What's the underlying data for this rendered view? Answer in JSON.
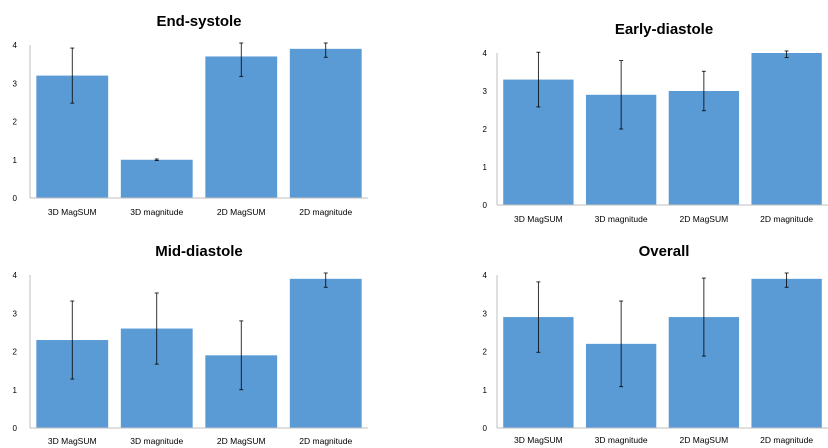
{
  "colors": {
    "bar": "#5B9BD5",
    "axis": "#bfbfbf",
    "error": "#000000"
  },
  "chart_data": [
    {
      "type": "bar",
      "title": "End-systole",
      "categories": [
        "3D MagSUM",
        "3D magnitude",
        "2D MagSUM",
        "2D magnitude"
      ],
      "values": [
        3.2,
        1.0,
        3.7,
        3.9
      ],
      "error": [
        0.72,
        0.02,
        0.52,
        0.22
      ],
      "ylim": [
        0,
        4
      ],
      "yticks": [
        "0",
        "1",
        "2",
        "3",
        "4"
      ],
      "grid": false
    },
    {
      "type": "bar",
      "title": "Early-diastole",
      "categories": [
        "3D MagSUM",
        "3D magnitude",
        "2D MagSUM",
        "2D magnitude"
      ],
      "values": [
        3.3,
        2.9,
        3.0,
        4.0
      ],
      "error": [
        0.72,
        0.9,
        0.52,
        0.12
      ],
      "ylim": [
        0,
        4
      ],
      "yticks": [
        "0",
        "1",
        "2",
        "3",
        "4"
      ],
      "grid": false
    },
    {
      "type": "bar",
      "title": "Mid-diastole",
      "categories": [
        "3D MagSUM",
        "3D magnitude",
        "2D MagSUM",
        "2D magnitude"
      ],
      "values": [
        2.3,
        2.6,
        1.9,
        3.9
      ],
      "error": [
        1.02,
        0.93,
        0.9,
        0.22
      ],
      "ylim": [
        0,
        4
      ],
      "yticks": [
        "0",
        "1",
        "2",
        "3",
        "4"
      ],
      "grid": false
    },
    {
      "type": "bar",
      "title": "Overall",
      "categories": [
        "3D MagSUM",
        "3D magnitude",
        "2D MagSUM",
        "2D magnitude"
      ],
      "values": [
        2.9,
        2.2,
        2.9,
        3.9
      ],
      "error": [
        0.92,
        1.12,
        1.02,
        0.22
      ],
      "ylim": [
        0,
        4
      ],
      "yticks": [
        "0",
        "1",
        "2",
        "3",
        "4"
      ],
      "grid": false
    }
  ]
}
